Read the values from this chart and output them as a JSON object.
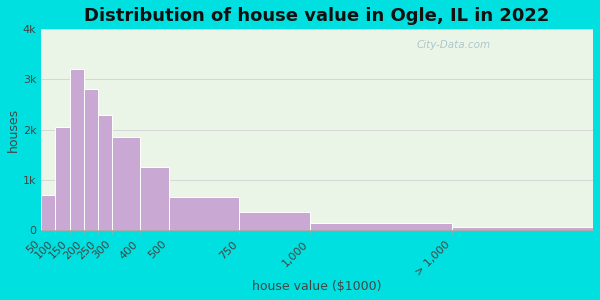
{
  "title": "Distribution of house value in Ogle, IL in 2022",
  "xlabel": "house value ($1000)",
  "ylabel": "houses",
  "bar_color": "#c9a8d4",
  "bar_edgecolor": "#ffffff",
  "background_outer": "#00e0e0",
  "background_inner": "#eaf5e8",
  "categories": [
    "50",
    "100",
    "150",
    "200",
    "250",
    "300",
    "400",
    "500",
    "750",
    "1,000",
    "> 1,000"
  ],
  "bin_edges": [
    50,
    100,
    150,
    200,
    250,
    300,
    400,
    500,
    750,
    1000,
    1500,
    2000
  ],
  "values": [
    700,
    2050,
    3200,
    2800,
    2300,
    1850,
    1250,
    650,
    350,
    130,
    50
  ],
  "ylim": [
    0,
    4000
  ],
  "yticks": [
    0,
    1000,
    2000,
    3000,
    4000
  ],
  "ytick_labels": [
    "0",
    "1k",
    "2k",
    "3k",
    "4k"
  ],
  "title_fontsize": 13,
  "axis_fontsize": 9,
  "tick_fontsize": 8,
  "watermark_text": "City-Data.com"
}
